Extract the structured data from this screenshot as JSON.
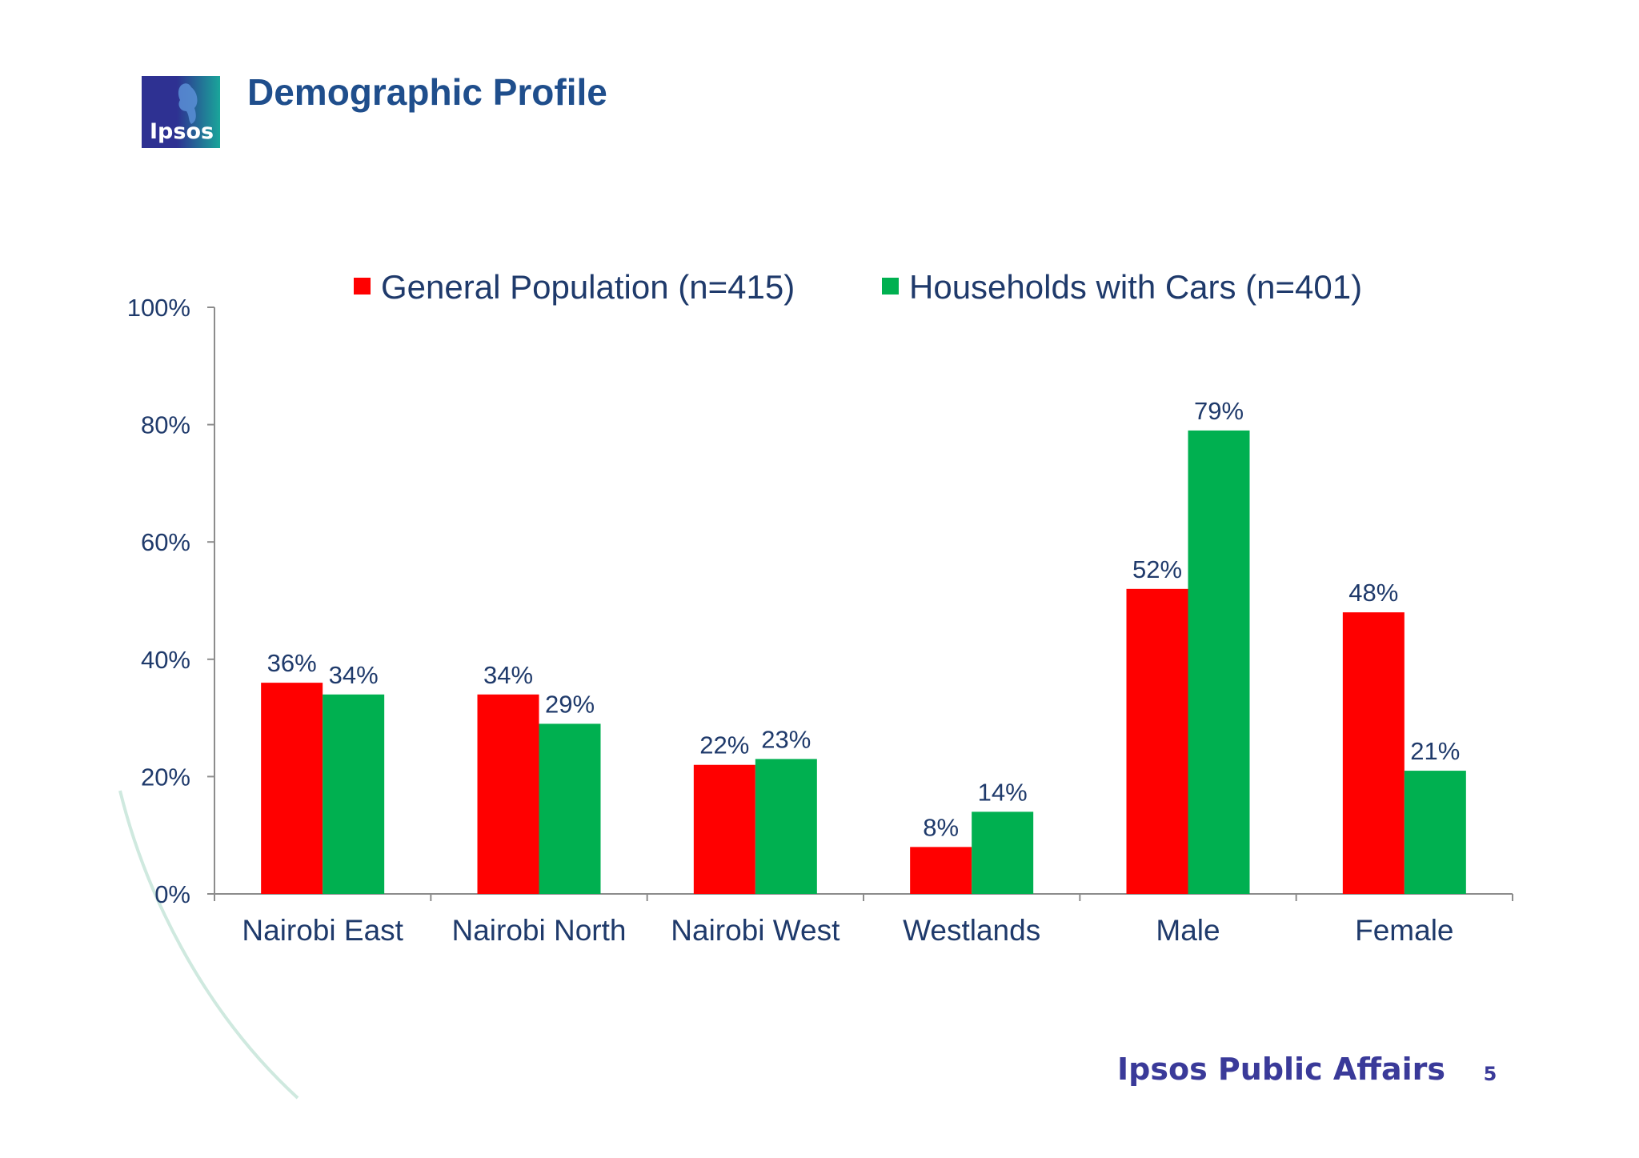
{
  "slide": {
    "title": "Demographic Profile",
    "logo_text": "Ipsos",
    "footer_brand": "Ipsos Public Affairs",
    "page_number": "5"
  },
  "colors": {
    "title": "#1f4e8c",
    "text": "#1f3a6b",
    "general_population": "#ff0000",
    "households_with_cars": "#00b050",
    "axis": "#8c8c8c",
    "brand": "#3a3a99",
    "decorative_arc": "#cfe9df"
  },
  "chart_data": {
    "type": "bar",
    "categories": [
      "Nairobi East",
      "Nairobi North",
      "Nairobi West",
      "Westlands",
      "Male",
      "Female"
    ],
    "series": [
      {
        "name": "General Population (n=415)",
        "color": "#ff0000",
        "values": [
          36,
          34,
          22,
          8,
          52,
          48
        ]
      },
      {
        "name": "Households with Cars (n=401)",
        "color": "#00b050",
        "values": [
          34,
          29,
          23,
          14,
          79,
          21
        ]
      }
    ],
    "value_suffix": "%",
    "yticks": [
      "0%",
      "20%",
      "40%",
      "60%",
      "80%",
      "100%"
    ],
    "ylim": [
      0,
      100
    ],
    "ytick_step": 20,
    "grid": false,
    "legend_position": "top"
  }
}
